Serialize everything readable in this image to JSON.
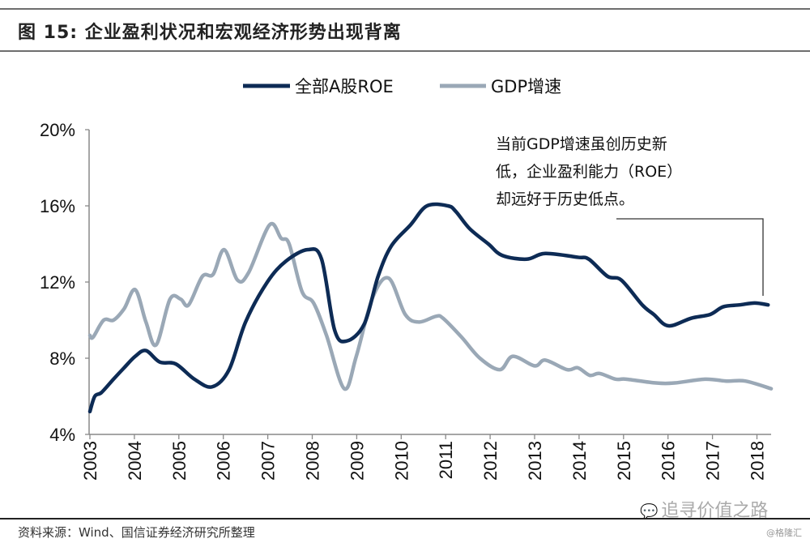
{
  "header": {
    "title": "图  15:  企业盈利状况和宏观经济形势出现背离"
  },
  "footer": {
    "source": "资料来源：Wind、国信证券经济研究所整理",
    "watermark": "追寻价值之路",
    "credit": "@格隆汇"
  },
  "chart_data": {
    "type": "line",
    "title": "企业盈利状况和宏观经济形势出现背离",
    "xlabel": "",
    "ylabel": "",
    "ylim": [
      4,
      20
    ],
    "xlim": [
      2003,
      2018.35
    ],
    "yticks": [
      4,
      8,
      12,
      16,
      20
    ],
    "ytick_labels": [
      "4%",
      "8%",
      "12%",
      "16%",
      "20%"
    ],
    "xticks": [
      2003,
      2004,
      2005,
      2006,
      2007,
      2008,
      2009,
      2010,
      2011,
      2012,
      2013,
      2014,
      2015,
      2016,
      2017,
      2018
    ],
    "xtick_labels": [
      "2003",
      "2004",
      "2005",
      "2006",
      "2007",
      "2008",
      "2009",
      "2010",
      "2011",
      "2012",
      "2013",
      "2014",
      "2015",
      "2016",
      "2017",
      "2018"
    ],
    "grid": false,
    "legend_position": "top",
    "annotation": [
      "当前GDP增速虽创历史新",
      "低，企业盈利能力（ROE）",
      "却远好于历史低点。"
    ],
    "series": [
      {
        "name": "全部A股ROE",
        "color": "#0d2b55",
        "x": [
          2003,
          2003.11,
          2003.26,
          2003.53,
          2003.77,
          2004.02,
          2004.26,
          2004.57,
          2004.93,
          2005.35,
          2005.75,
          2006.13,
          2006.5,
          2006.99,
          2007.41,
          2007.9,
          2008.21,
          2008.5,
          2008.77,
          2009.17,
          2009.48,
          2009.78,
          2010.21,
          2010.58,
          2011.05,
          2011.23,
          2011.54,
          2011.96,
          2012.27,
          2012.82,
          2013.24,
          2013.97,
          2014.22,
          2014.64,
          2014.95,
          2015.42,
          2015.68,
          2016.01,
          2016.52,
          2016.95,
          2017.24,
          2017.61,
          2017.95,
          2018.25
        ],
        "values": [
          5.2,
          6.0,
          6.2,
          6.9,
          7.5,
          8.1,
          8.4,
          7.8,
          7.7,
          6.9,
          6.5,
          7.4,
          9.9,
          12.0,
          13.1,
          13.7,
          13.2,
          9.5,
          8.9,
          9.8,
          12.3,
          13.9,
          15.0,
          16.0,
          16.0,
          15.7,
          14.8,
          14.0,
          13.4,
          13.2,
          13.5,
          13.3,
          13.2,
          12.3,
          12.1,
          10.8,
          10.3,
          9.7,
          10.1,
          10.3,
          10.7,
          10.8,
          10.9,
          10.8
        ]
      },
      {
        "name": "GDP增速",
        "color": "#9aa8b6",
        "x": [
          2003,
          2003.07,
          2003.31,
          2003.53,
          2003.77,
          2004.02,
          2004.26,
          2004.49,
          2004.8,
          2005.04,
          2005.22,
          2005.53,
          2005.77,
          2006.02,
          2006.32,
          2006.57,
          2007.04,
          2007.3,
          2007.48,
          2007.77,
          2008.03,
          2008.32,
          2008.72,
          2008.99,
          2009.36,
          2009.72,
          2010.09,
          2010.4,
          2010.78,
          2010.94,
          2011.36,
          2011.77,
          2012.22,
          2012.51,
          2013.0,
          2013.24,
          2013.73,
          2013.97,
          2014.24,
          2014.46,
          2014.82,
          2015.06,
          2015.73,
          2016.15,
          2016.83,
          2017.32,
          2017.74,
          2018.32
        ],
        "values": [
          9.2,
          9.1,
          10.0,
          10.0,
          10.6,
          11.6,
          9.9,
          8.7,
          11.1,
          11.1,
          10.8,
          12.3,
          12.4,
          13.7,
          12.1,
          12.5,
          15.0,
          14.3,
          14.0,
          11.5,
          10.9,
          9.2,
          6.4,
          8.1,
          11.2,
          12.2,
          10.3,
          9.9,
          10.2,
          10.1,
          9.1,
          8.0,
          7.4,
          8.1,
          7.6,
          7.9,
          7.4,
          7.5,
          7.1,
          7.2,
          6.9,
          6.9,
          6.7,
          6.7,
          6.9,
          6.8,
          6.8,
          6.4
        ]
      }
    ]
  }
}
